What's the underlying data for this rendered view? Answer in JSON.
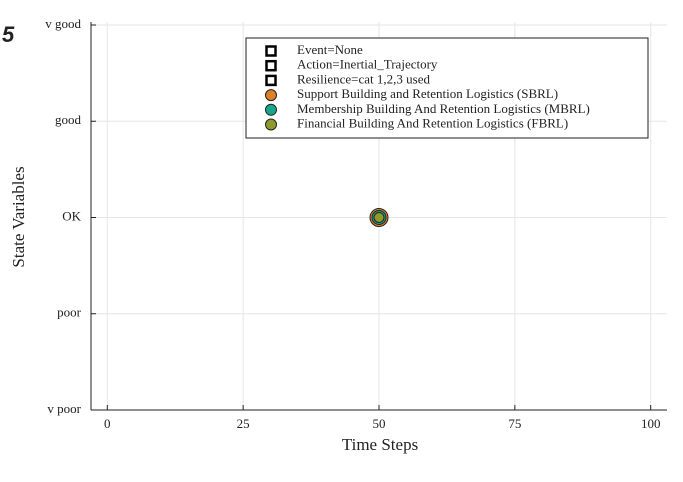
{
  "chart_data": {
    "type": "scatter",
    "panel_label": "5",
    "xlabel": "Time Steps",
    "ylabel": "State Variables",
    "xlim": [
      -3,
      103
    ],
    "xticks": [
      0,
      25,
      50,
      75,
      100
    ],
    "ylim": [
      0,
      4
    ],
    "yticks": [
      {
        "value": 0,
        "label": "v poor"
      },
      {
        "value": 1,
        "label": "poor"
      },
      {
        "value": 2,
        "label": "OK"
      },
      {
        "value": 3,
        "label": "good"
      },
      {
        "value": 4,
        "label": "v good"
      }
    ],
    "grid": true,
    "legend": "top-right",
    "series": [
      {
        "name": "Event=None",
        "color": "#ffffff",
        "marker": "square",
        "x": [],
        "values": []
      },
      {
        "name": "Action=Inertial_Trajectory",
        "color": "#ffffff",
        "marker": "square",
        "x": [],
        "values": []
      },
      {
        "name": "Resilience=cat 1,2,3 used",
        "color": "#ffffff",
        "marker": "square",
        "x": [],
        "values": []
      },
      {
        "name": "Support Building and Retention Logistics (SBRL)",
        "color": "#e0812a",
        "marker": "circle",
        "marker_size": 9,
        "x": [
          50
        ],
        "values": [
          2
        ]
      },
      {
        "name": "Membership Building And Retention Logistics (MBRL)",
        "color": "#17a58c",
        "marker": "circle",
        "marker_size": 7,
        "x": [
          50
        ],
        "values": [
          2
        ]
      },
      {
        "name": "Financial Building And Retention Logistics (FBRL)",
        "color": "#8f9a2a",
        "marker": "circle",
        "marker_size": 5,
        "x": [
          50
        ],
        "values": [
          2
        ]
      }
    ]
  }
}
